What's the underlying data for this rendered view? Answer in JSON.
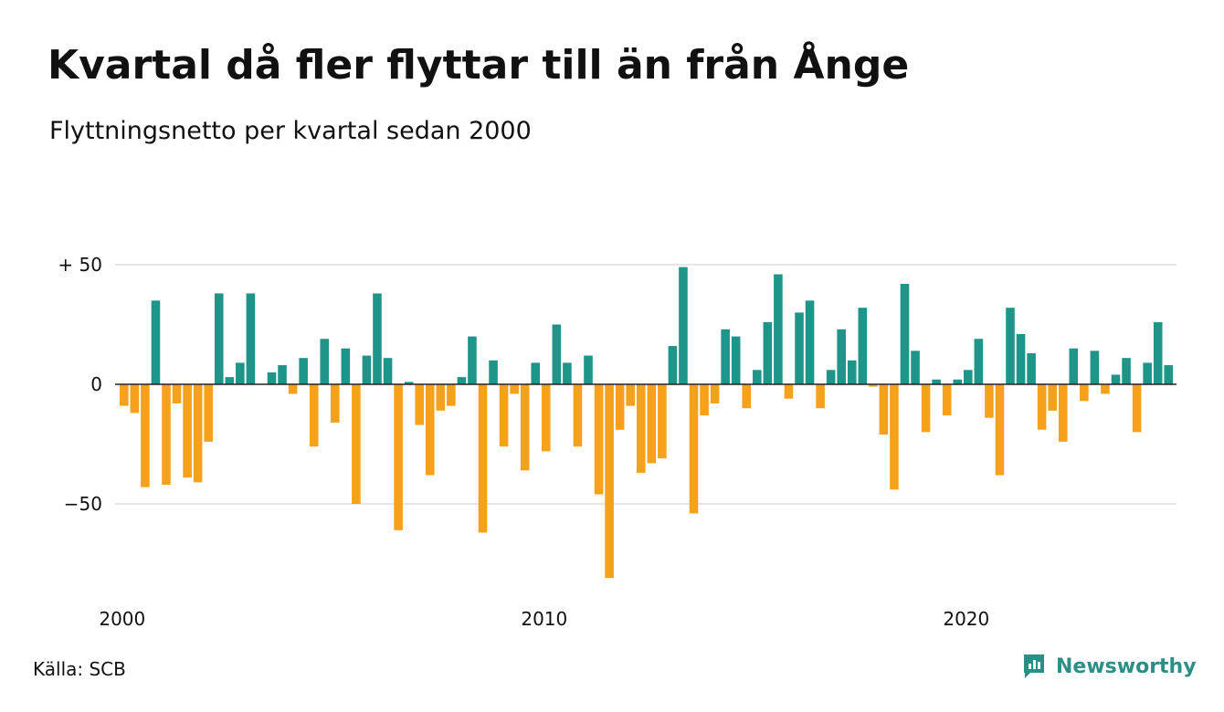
{
  "title": "Kvartal då fler flyttar till än från Ånge",
  "subtitle": "Flyttningsnetto per kvartal sedan 2000",
  "source": "Källa: SCB",
  "brand": {
    "name": "Newsworthy",
    "icon": "newsworthy-logo-icon",
    "color": "#2b8f86"
  },
  "colors": {
    "positive": "#1f9488",
    "negative": "#f5a11c",
    "grid": "#dddddd",
    "zero_line": "#222222"
  },
  "chart_data": {
    "type": "bar",
    "title": "Kvartal då fler flyttar till än från Ånge",
    "subtitle": "Flyttningsnetto per kvartal sedan 2000",
    "xlabel": "",
    "ylabel": "",
    "ylim": [
      -85,
      52
    ],
    "yticks": [
      {
        "value": 50,
        "label": "+ 50"
      },
      {
        "value": 0,
        "label": "0"
      },
      {
        "value": -50,
        "label": "−50"
      }
    ],
    "xticks": [
      {
        "index": 0,
        "label": "2000"
      },
      {
        "index": 40,
        "label": "2010"
      },
      {
        "index": 80,
        "label": "2020"
      }
    ],
    "grid": true,
    "start": "2000 Q1",
    "values": [
      -9,
      -12,
      -43,
      35,
      -42,
      -8,
      -39,
      -41,
      -24,
      38,
      3,
      9,
      38,
      0,
      5,
      8,
      -4,
      11,
      -26,
      19,
      -16,
      15,
      -50,
      12,
      38,
      11,
      -61,
      1,
      -17,
      -38,
      -11,
      -9,
      3,
      20,
      -62,
      10,
      -26,
      -4,
      -36,
      9,
      -28,
      25,
      9,
      -26,
      12,
      -46,
      -81,
      -19,
      -9,
      -37,
      -33,
      -31,
      16,
      49,
      -54,
      -13,
      -8,
      23,
      20,
      -10,
      6,
      26,
      46,
      -6,
      30,
      35,
      -10,
      6,
      23,
      10,
      32,
      -1,
      -21,
      -44,
      42,
      14,
      -20,
      2,
      -13,
      2,
      6,
      19,
      -14,
      -38,
      32,
      21,
      13,
      -19,
      -11,
      -24,
      15,
      -7,
      14,
      -4,
      4,
      11,
      -20,
      9,
      26,
      8
    ]
  }
}
